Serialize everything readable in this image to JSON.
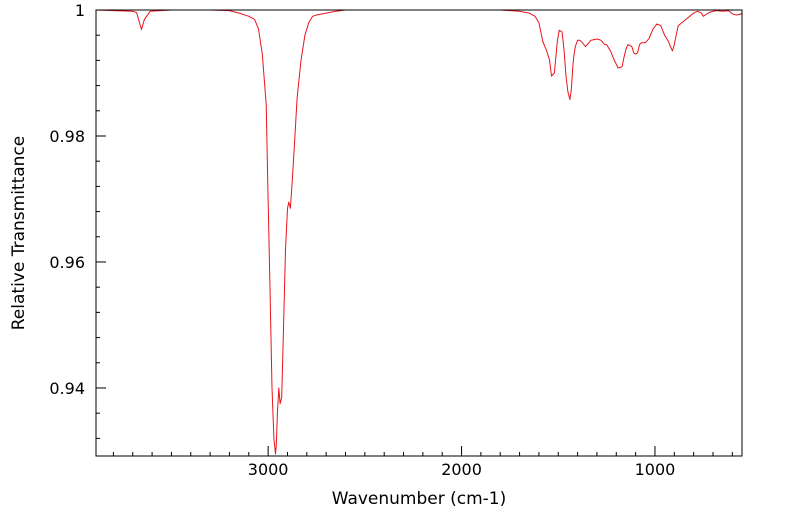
{
  "chart_data": {
    "type": "line",
    "title": "",
    "xlabel": "Wavenumber (cm-1)",
    "ylabel": "Relative Transmittance",
    "xlim": [
      3890,
      550
    ],
    "ylim": [
      0.9292,
      1.0
    ],
    "x_reversed": true,
    "grid": false,
    "legend": "none",
    "x_ticks": [
      {
        "value": 3000,
        "label": "3000"
      },
      {
        "value": 2000,
        "label": "2000"
      },
      {
        "value": 1000,
        "label": "1000"
      }
    ],
    "y_ticks": [
      {
        "value": 1.0,
        "label": "1"
      },
      {
        "value": 0.98,
        "label": "0.98"
      },
      {
        "value": 0.96,
        "label": "0.96"
      },
      {
        "value": 0.94,
        "label": "0.94"
      }
    ],
    "series": [
      {
        "color": "#e8141b",
        "x": [
          3890,
          3700,
          3680,
          3665,
          3655,
          3640,
          3610,
          3500,
          3400,
          3300,
          3200,
          3150,
          3100,
          3070,
          3050,
          3030,
          3010,
          3000,
          2990,
          2980,
          2970,
          2962,
          2958,
          2952,
          2945,
          2938,
          2930,
          2920,
          2910,
          2900,
          2893,
          2885,
          2875,
          2865,
          2850,
          2830,
          2810,
          2790,
          2770,
          2750,
          2700,
          2650,
          2600,
          2500,
          2400,
          2200,
          2000,
          1800,
          1700,
          1650,
          1620,
          1600,
          1580,
          1560,
          1545,
          1535,
          1520,
          1505,
          1495,
          1480,
          1470,
          1460,
          1450,
          1440,
          1432,
          1425,
          1420,
          1412,
          1400,
          1390,
          1380,
          1370,
          1360,
          1350,
          1330,
          1300,
          1280,
          1260,
          1250,
          1240,
          1230,
          1210,
          1190,
          1170,
          1160,
          1150,
          1140,
          1120,
          1110,
          1100,
          1090,
          1080,
          1070,
          1060,
          1050,
          1030,
          1010,
          990,
          970,
          950,
          930,
          920,
          910,
          900,
          890,
          880,
          860,
          840,
          820,
          800,
          780,
          760,
          750,
          740,
          720,
          700,
          680,
          650,
          620,
          600,
          580,
          560,
          550
        ],
        "y": [
          1.0,
          0.9998,
          0.9996,
          0.998,
          0.9969,
          0.9985,
          0.9998,
          1.0,
          1.0,
          1.0,
          0.9999,
          0.9995,
          0.999,
          0.9985,
          0.997,
          0.993,
          0.985,
          0.97,
          0.955,
          0.94,
          0.932,
          0.9295,
          0.931,
          0.936,
          0.94,
          0.9375,
          0.9385,
          0.95,
          0.962,
          0.9685,
          0.9695,
          0.9685,
          0.973,
          0.978,
          0.986,
          0.992,
          0.996,
          0.998,
          0.999,
          0.9992,
          0.9995,
          0.9998,
          1.0,
          1.0,
          1.0,
          1.0,
          1.0,
          1.0,
          0.9998,
          0.9995,
          0.999,
          0.998,
          0.995,
          0.9935,
          0.992,
          0.9895,
          0.99,
          0.995,
          0.9968,
          0.9965,
          0.9935,
          0.9895,
          0.987,
          0.9858,
          0.9875,
          0.991,
          0.9925,
          0.9942,
          0.9952,
          0.9952,
          0.995,
          0.9946,
          0.9942,
          0.9945,
          0.9952,
          0.9954,
          0.9952,
          0.9945,
          0.9945,
          0.994,
          0.9935,
          0.992,
          0.9908,
          0.991,
          0.9925,
          0.9938,
          0.9945,
          0.9942,
          0.9932,
          0.993,
          0.9932,
          0.9945,
          0.9948,
          0.9948,
          0.9948,
          0.9955,
          0.997,
          0.9978,
          0.9975,
          0.996,
          0.995,
          0.9942,
          0.9935,
          0.9945,
          0.996,
          0.9975,
          0.998,
          0.9985,
          0.999,
          0.9995,
          0.9998,
          0.9995,
          0.999,
          0.9992,
          0.9996,
          0.9998,
          0.9999,
          0.9998,
          0.9999,
          0.9994,
          0.9992,
          0.9993,
          0.9995
        ]
      }
    ]
  }
}
